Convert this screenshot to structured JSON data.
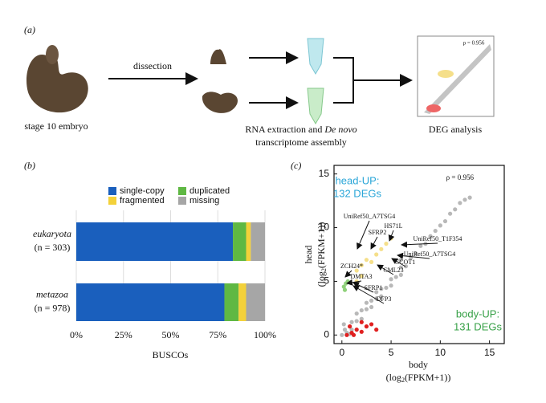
{
  "panel_a": {
    "label": "(a)",
    "embryo": "stage 10 embryo",
    "dissection": "dissection",
    "rna_1": "RNA extraction and ",
    "rna_italic": "De novo",
    "rna_2": "transcriptome assembly",
    "deg": "DEG analysis",
    "mini_rho": "ρ = 0.956"
  },
  "chart_data": [
    {
      "type": "hbar_stacked",
      "label": "(b)",
      "categories": [
        "eukaryota",
        "metazoa"
      ],
      "category_counts": [
        "(n = 303)",
        "(n = 978)"
      ],
      "series": [
        {
          "name": "single-copy",
          "color": "#1a5fbd",
          "values": [
            83,
            78.5
          ]
        },
        {
          "name": "duplicated",
          "color": "#5fb843",
          "values": [
            7,
            7.5
          ]
        },
        {
          "name": "fragmented",
          "color": "#f3d13a",
          "values": [
            2.5,
            4
          ]
        },
        {
          "name": "missing",
          "color": "#a6a6a6",
          "values": [
            7.5,
            10
          ]
        }
      ],
      "xlim": [
        0,
        100
      ],
      "xticks": [
        {
          "value": 0,
          "label": "0%"
        },
        {
          "value": 25,
          "label": "25%"
        },
        {
          "value": 50,
          "label": "50%"
        },
        {
          "value": 75,
          "label": "75%"
        },
        {
          "value": 100,
          "label": "100%"
        }
      ],
      "xlabel": "BUSCOs",
      "grid": true
    },
    {
      "type": "scatter",
      "label": "(c)",
      "xlim": [
        -0.8,
        16.5
      ],
      "ylim": [
        -0.8,
        15.8
      ],
      "xticks": [
        0,
        5,
        10,
        15
      ],
      "yticks": [
        0,
        5,
        10,
        15
      ],
      "ylabel": "head",
      "xlabel": "body",
      "axis_unit": [
        "(log",
        "2",
        "(FPKM+1))"
      ],
      "rho": "ρ = 0.956",
      "head_up": [
        "head-UP:",
        "132 DEGs"
      ],
      "body_up": [
        "body-UP:",
        "131 DEGs"
      ],
      "annotations": [
        "UniRef50_A7TSG4",
        "HS71L",
        "SFRP2",
        "UniRef50_T1F354",
        "UniRef50_A7TSG4",
        "SCOT1",
        "CML23",
        "ZCH24*",
        "DMTA3",
        "SFRP1",
        "DFP3"
      ],
      "series": [
        {
          "color": "#b8b8b8",
          "x": [
            0,
            0.3,
            0.5,
            1,
            1.5,
            2,
            2.5,
            3,
            3.5,
            4,
            4.5,
            5,
            5.5,
            6,
            6.5,
            7,
            7.5,
            8,
            8.5,
            9,
            9.5,
            10,
            10.5,
            11,
            11.5,
            12,
            12.5,
            13,
            1,
            2,
            3,
            4,
            5,
            6,
            1.5,
            2.5,
            3.5,
            0.2,
            0.8,
            6
          ],
          "y": [
            0,
            0.5,
            0.2,
            1.2,
            1.3,
            2.3,
            2.4,
            3.2,
            3.4,
            4.3,
            4.4,
            5.2,
            5.4,
            6.3,
            6.4,
            7.2,
            7.6,
            8.3,
            8.5,
            9.2,
            9.7,
            10.2,
            10.6,
            11.3,
            11.7,
            12.3,
            12.6,
            12.8,
            0.5,
            1.5,
            2.6,
            3.6,
            4.6,
            5.6,
            2,
            3,
            4,
            1,
            0.1,
            7
          ]
        },
        {
          "color": "#e02020",
          "x": [
            0.5,
            1,
            1.5,
            2,
            2.5,
            3,
            0.8,
            1.2,
            3.5,
            2
          ],
          "y": [
            0,
            0.2,
            0.5,
            0.3,
            0.8,
            1,
            0.8,
            0,
            0.5,
            1.2
          ]
        },
        {
          "color": "#f5df8a",
          "x": [
            1.5,
            2,
            2.5,
            3,
            3.5,
            4,
            4.5,
            5,
            2,
            1.5
          ],
          "y": [
            6,
            6.5,
            7,
            6.8,
            7.5,
            8,
            8.5,
            9,
            5.5,
            5
          ]
        },
        {
          "color": "#8fd17a",
          "x": [
            0.2,
            0.4,
            0.3,
            0.6
          ],
          "y": [
            4.5,
            4.8,
            4.2,
            5
          ]
        }
      ]
    }
  ]
}
